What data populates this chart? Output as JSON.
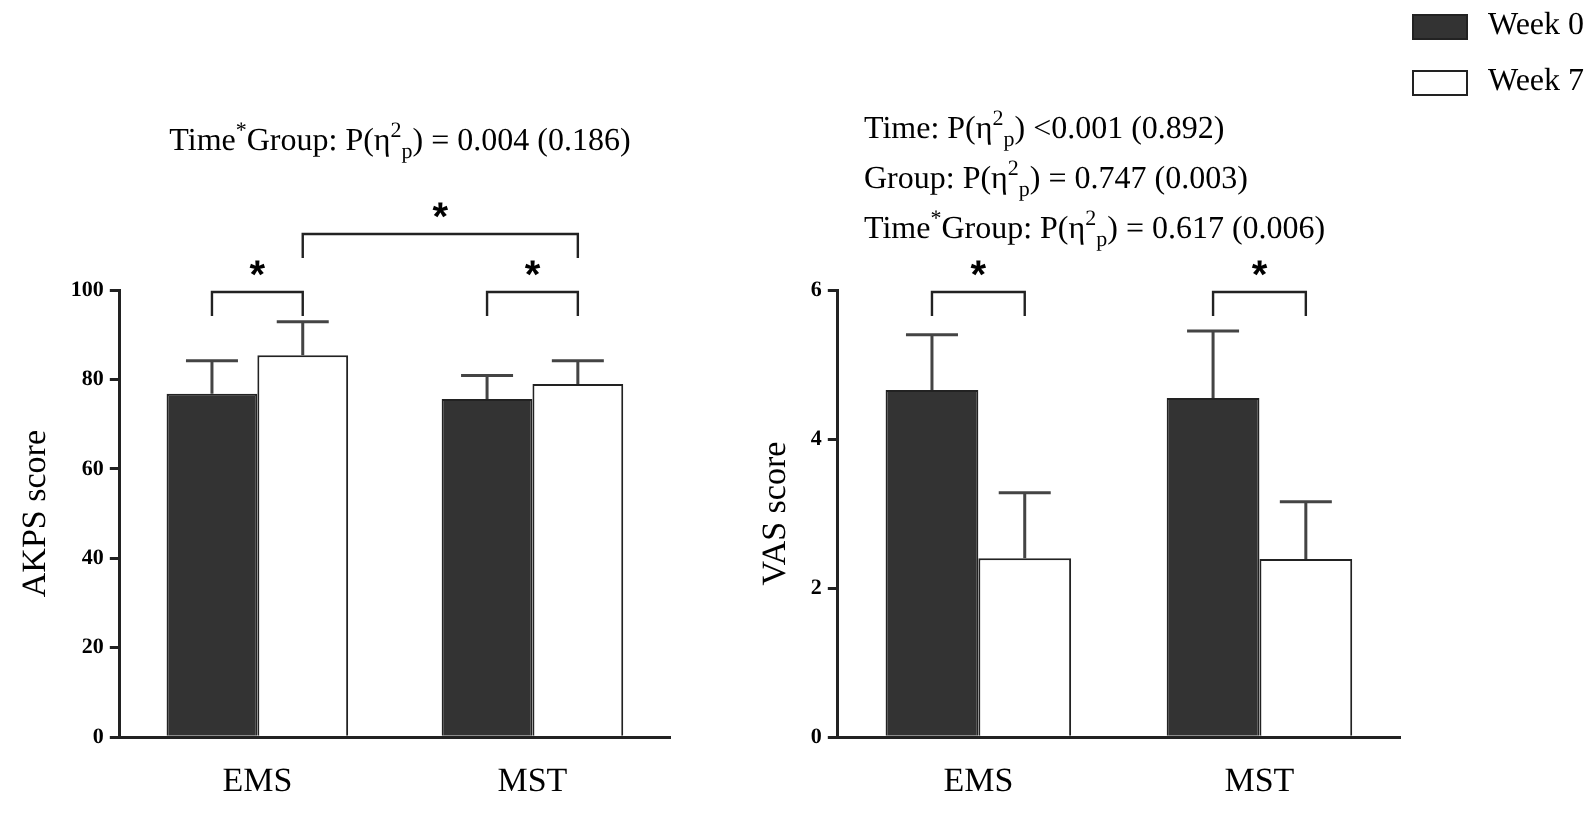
{
  "chart_data": [
    {
      "type": "bar",
      "title": "Time$^{*}$Group: P(η$^{2}$$_{p}$) = 0.004 (0.186)",
      "ylabel": "AKPS score",
      "categories": [
        "EMS",
        "MST"
      ],
      "series": [
        {
          "color": "#333333",
          "values": [
            76.8,
            75.6
          ],
          "errors": [
            7.4,
            5.3
          ]
        },
        {
          "color": "#ffffff",
          "values": [
            85.4,
            79.0
          ],
          "errors": [
            7.5,
            5.2
          ]
        }
      ],
      "ylim": [
        0,
        100
      ],
      "yticks": [
        0,
        20,
        40,
        60,
        80,
        100
      ],
      "grid": false,
      "legend": false,
      "annotations": [
        "*",
        "*",
        "*"
      ]
    },
    {
      "type": "bar",
      "title": "Time: P(η$^{2}$$_{p}$) <0.001 (0.892)\nGroup: P(η$^{2}$$_{p}$) = 0.747 (0.003)\nTime$^{*}$Group: P(η$^{2}$$_{p}$) = 0.617 (0.006)",
      "ylabel": "VAS score",
      "categories": [
        "EMS",
        "MST"
      ],
      "series": [
        {
          "name": "Week 0",
          "color": "#333333",
          "values": [
            4.66,
            4.55
          ],
          "errors": [
            0.74,
            0.9
          ]
        },
        {
          "name": "Week 7",
          "color": "#ffffff",
          "values": [
            2.4,
            2.39
          ],
          "errors": [
            0.88,
            0.77
          ]
        }
      ],
      "ylim": [
        0,
        6
      ],
      "yticks": [
        0,
        2,
        4,
        6
      ],
      "grid": false,
      "legend": "top right",
      "annotations": [
        "*",
        "*"
      ]
    }
  ]
}
